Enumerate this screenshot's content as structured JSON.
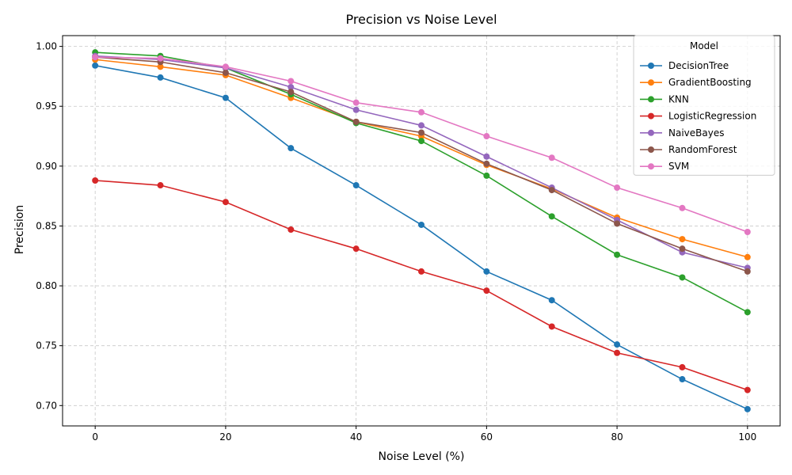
{
  "chart_data": {
    "type": "line",
    "title": "Precision vs Noise Level",
    "xlabel": "Noise Level (%)",
    "ylabel": "Precision",
    "xlim": [
      -5,
      105
    ],
    "ylim": [
      0.683,
      1.009
    ],
    "xticks": [
      0,
      20,
      40,
      60,
      80,
      100
    ],
    "xtick_labels": [
      "0",
      "20",
      "40",
      "60",
      "80",
      "100"
    ],
    "yticks": [
      0.7,
      0.75,
      0.8,
      0.85,
      0.9,
      0.95,
      1.0
    ],
    "ytick_labels": [
      "0.70",
      "0.75",
      "0.80",
      "0.85",
      "0.90",
      "0.95",
      "1.00"
    ],
    "grid": true,
    "legend_title": "Model",
    "legend_position": "top-right",
    "x": [
      0,
      10,
      20,
      30,
      40,
      50,
      60,
      70,
      80,
      90,
      100
    ],
    "series": [
      {
        "name": "DecisionTree",
        "color": "#1f77b4",
        "values": [
          0.984,
          0.974,
          0.957,
          0.915,
          0.884,
          0.851,
          0.812,
          0.788,
          0.751,
          0.722,
          0.697
        ]
      },
      {
        "name": "GradientBoosting",
        "color": "#ff7f0e",
        "values": [
          0.989,
          0.983,
          0.976,
          0.957,
          0.937,
          0.925,
          0.901,
          0.881,
          0.857,
          0.839,
          0.824
        ]
      },
      {
        "name": "KNN",
        "color": "#2ca02c",
        "values": [
          0.995,
          0.992,
          0.982,
          0.96,
          0.936,
          0.921,
          0.892,
          0.858,
          0.826,
          0.807,
          0.778
        ]
      },
      {
        "name": "LogisticRegression",
        "color": "#d62728",
        "values": [
          0.888,
          0.884,
          0.87,
          0.847,
          0.831,
          0.812,
          0.796,
          0.766,
          0.744,
          0.732,
          0.713
        ]
      },
      {
        "name": "NaiveBayes",
        "color": "#9467bd",
        "values": [
          0.992,
          0.989,
          0.982,
          0.966,
          0.947,
          0.934,
          0.908,
          0.882,
          0.855,
          0.828,
          0.815
        ]
      },
      {
        "name": "RandomForest",
        "color": "#8c564b",
        "values": [
          0.991,
          0.987,
          0.978,
          0.962,
          0.937,
          0.928,
          0.902,
          0.88,
          0.852,
          0.831,
          0.812
        ]
      },
      {
        "name": "SVM",
        "color": "#e377c2",
        "values": [
          0.991,
          0.99,
          0.983,
          0.971,
          0.953,
          0.945,
          0.925,
          0.907,
          0.882,
          0.865,
          0.845
        ]
      }
    ]
  }
}
